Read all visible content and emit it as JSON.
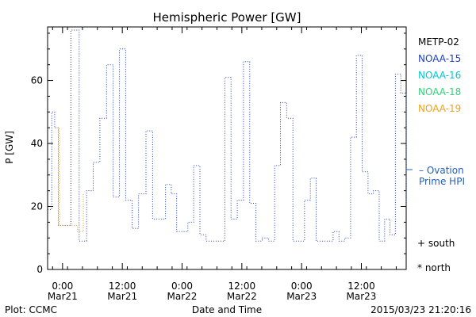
{
  "chart_data": {
    "type": "line",
    "title": "Hemispheric Power [GW]",
    "ylabel": "P [GW]",
    "xlabel": "Date and Time",
    "ylim": [
      0,
      77
    ],
    "xlim": [
      "2015-03-20T21:00",
      "2015-03-23T21:00"
    ],
    "yticks": [
      "0",
      "20",
      "40",
      "60"
    ],
    "xticks": [
      {
        "time": "2015-03-21T00:00",
        "label1": "0:00",
        "label2": "Mar21"
      },
      {
        "time": "2015-03-21T12:00",
        "label1": "12:00",
        "label2": "Mar21"
      },
      {
        "time": "2015-03-22T00:00",
        "label1": "0:00",
        "label2": "Mar22"
      },
      {
        "time": "2015-03-22T12:00",
        "label1": "12:00",
        "label2": "Mar22"
      },
      {
        "time": "2015-03-23T00:00",
        "label1": "0:00",
        "label2": "Mar23"
      },
      {
        "time": "2015-03-23T12:00",
        "label1": "12:00",
        "label2": "Mar23"
      }
    ],
    "legend": [
      {
        "name": "METP-02",
        "color": "#000000"
      },
      {
        "name": "NOAA-15",
        "color": "#1f3fbf"
      },
      {
        "name": "NOAA-16",
        "color": "#00c8d2"
      },
      {
        "name": "NOAA-18",
        "color": "#33d17a"
      },
      {
        "name": "NOAA-19",
        "color": "#f0a020"
      }
    ],
    "ovation": {
      "label1": "– Ovation",
      "label2": "Prime HPI",
      "value": 32,
      "color": "#1f5fbf"
    },
    "markers": {
      "south": "+ south",
      "north": "* north"
    },
    "series": [
      {
        "name": "NOAA-15",
        "color": "#1f3fbf",
        "x": [
          "2015-03-20T21:00",
          "2015-03-20T21:50",
          "2015-03-20T22:25",
          "2015-03-20T23:10",
          "2015-03-21T00:00",
          "2015-03-21T01:40",
          "2015-03-21T03:20",
          "2015-03-21T04:50",
          "2015-03-21T06:10",
          "2015-03-21T07:30",
          "2015-03-21T08:50",
          "2015-03-21T10:10",
          "2015-03-21T11:25",
          "2015-03-21T12:40",
          "2015-03-21T14:00",
          "2015-03-21T15:15",
          "2015-03-21T16:45",
          "2015-03-21T18:05",
          "2015-03-21T19:15",
          "2015-03-21T20:40",
          "2015-03-21T21:50",
          "2015-03-21T22:55",
          "2015-03-22T00:00",
          "2015-03-22T01:10",
          "2015-03-22T02:20",
          "2015-03-22T03:35",
          "2015-03-22T04:50",
          "2015-03-22T06:05",
          "2015-03-22T07:20",
          "2015-03-22T08:35",
          "2015-03-22T09:50",
          "2015-03-22T11:05",
          "2015-03-22T12:20",
          "2015-03-22T13:35",
          "2015-03-22T14:50",
          "2015-03-22T16:05",
          "2015-03-22T17:20",
          "2015-03-22T18:35",
          "2015-03-22T19:45",
          "2015-03-22T21:00",
          "2015-03-22T22:15",
          "2015-03-22T23:25",
          "2015-03-23T00:35",
          "2015-03-23T01:45",
          "2015-03-23T02:55",
          "2015-03-23T04:10",
          "2015-03-23T05:15",
          "2015-03-23T06:20",
          "2015-03-23T07:30",
          "2015-03-23T08:40",
          "2015-03-23T09:50",
          "2015-03-23T11:00",
          "2015-03-23T12:10",
          "2015-03-23T13:20",
          "2015-03-23T14:25",
          "2015-03-23T15:35",
          "2015-03-23T16:40",
          "2015-03-23T17:45",
          "2015-03-23T18:50",
          "2015-03-23T19:55",
          "2015-03-23T21:00"
        ],
        "y": [
          19,
          50,
          45,
          14,
          14,
          76,
          9,
          25,
          34,
          48,
          65,
          23,
          70,
          22,
          13,
          24,
          44,
          16,
          16,
          27,
          24,
          12,
          12,
          15,
          33,
          11,
          9,
          9,
          9,
          61,
          16,
          22,
          66,
          21,
          9,
          10,
          9,
          33,
          53,
          48,
          9,
          9,
          22,
          29,
          9,
          9,
          9,
          12,
          9,
          10,
          42,
          68,
          31,
          24,
          25,
          9,
          16,
          11,
          62,
          56,
          20
        ]
      },
      {
        "name": "NOAA-19",
        "color": "#f0a020",
        "x": [
          "2015-03-20T22:30",
          "2015-03-20T23:20",
          "2015-03-21T03:00",
          "2015-03-21T04:10"
        ],
        "y": [
          45,
          14,
          12,
          24
        ]
      }
    ]
  },
  "footer": {
    "left": "Plot: CCMC",
    "center": "Date and Time",
    "right": "2015/03/23 21:20:16"
  }
}
